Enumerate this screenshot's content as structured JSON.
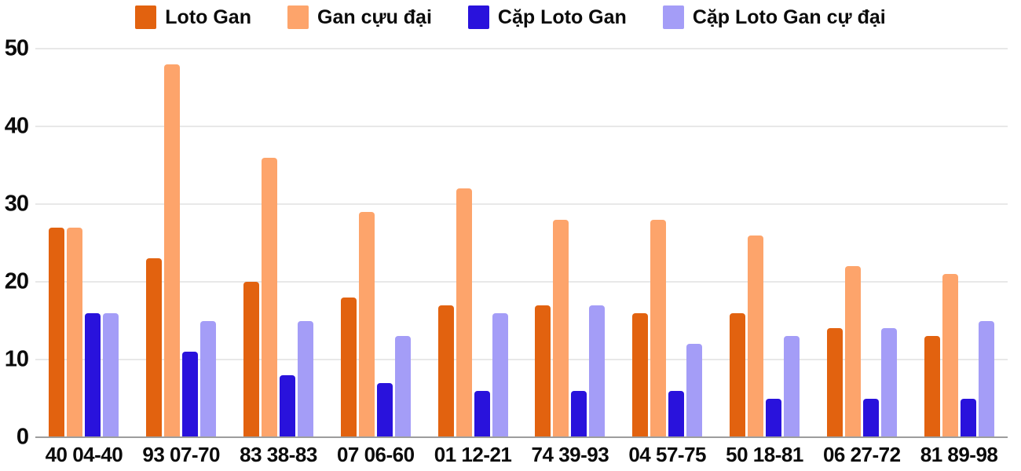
{
  "chart_data": {
    "type": "bar",
    "title": "",
    "xlabel": "",
    "ylabel": "",
    "ylim": [
      0,
      50
    ],
    "y_ticks": [
      0,
      10,
      20,
      30,
      40,
      50
    ],
    "grid": true,
    "legend_position": "top",
    "background": "#ffffff",
    "gridline_color": "#e8e8e8",
    "baseline_color": "#9d9d9d",
    "categories": [
      "40 04-40",
      "93 07-70",
      "83 38-83",
      "07 06-60",
      "01 12-21",
      "74 39-93",
      "04 57-75",
      "50 18-81",
      "06 27-72",
      "81 89-98"
    ],
    "series": [
      {
        "name": "Loto Gan",
        "color": "#e2620f",
        "values": [
          27,
          23,
          20,
          18,
          17,
          17,
          16,
          16,
          14,
          13
        ]
      },
      {
        "name": "Gan cựu đại",
        "color": "#fda46b",
        "values": [
          27,
          48,
          36,
          29,
          32,
          28,
          28,
          26,
          22,
          21
        ]
      },
      {
        "name": "Cặp Loto Gan",
        "color": "#2912dc",
        "values": [
          16,
          11,
          8,
          7,
          6,
          6,
          6,
          5,
          5,
          5
        ]
      },
      {
        "name": "Cặp Loto Gan cự đại",
        "color": "#a49df7",
        "values": [
          16,
          15,
          15,
          13,
          16,
          17,
          12,
          13,
          14,
          15
        ]
      }
    ]
  }
}
